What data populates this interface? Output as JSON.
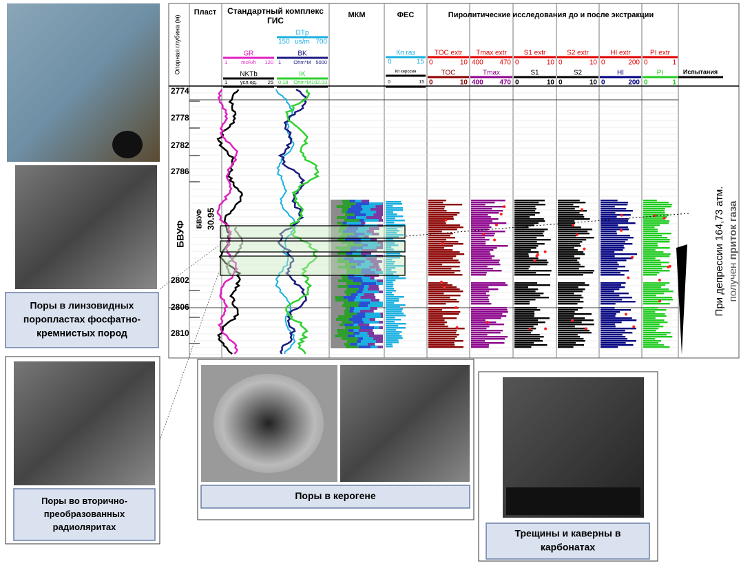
{
  "log": {
    "depth_axis_title": "Опорная глубина (м)",
    "headers": {
      "plast": "Пласт",
      "gis_line1": "Стандартный комплекс",
      "gis_line2": "ГИС",
      "mkm": "МКМ",
      "fes": "ФЕС",
      "pyro": "Пиролитические исследования до и после экстракции",
      "tests": "Испытания"
    },
    "gis_scales": [
      {
        "name": "DTp",
        "min": 150,
        "unit": "us/m",
        "max": 700
      },
      {
        "name": "GR",
        "min": 1,
        "unit": "mcR/h",
        "max": 120
      },
      {
        "name": "BK",
        "min": 1,
        "unit": "Ohm*M",
        "max": 5000
      },
      {
        "name": "NKTb",
        "min": 1,
        "unit": "усл.ед.",
        "max": 25
      },
      {
        "name": "IK",
        "min": 0.18,
        "unit": "Ohm*M",
        "max": 102.03
      }
    ],
    "fes_scales": [
      {
        "name": "Кп газ",
        "min": 0,
        "max": 15
      },
      {
        "name": "Кп керосин",
        "min": 0,
        "max": 15
      }
    ],
    "pyro_extr": [
      {
        "name": "TOC extr",
        "min": 0,
        "max": 10
      },
      {
        "name": "Tmax extr",
        "min": 400,
        "max": 470
      },
      {
        "name": "S1 extr",
        "min": 0,
        "max": 10
      },
      {
        "name": "S2 extr",
        "min": 0,
        "max": 10
      },
      {
        "name": "HI extr",
        "min": 0,
        "max": 200
      },
      {
        "name": "PI extr",
        "min": 0,
        "max": 1
      }
    ],
    "pyro": [
      {
        "name": "TOC",
        "min": 0,
        "max": 10
      },
      {
        "name": "Tmax",
        "min": 400,
        "max": 470
      },
      {
        "name": "S1",
        "min": 0,
        "max": 10
      },
      {
        "name": "S2",
        "min": 0,
        "max": 10
      },
      {
        "name": "HI",
        "min": 0,
        "max": 200
      },
      {
        "name": "PI",
        "min": 0,
        "max": 1
      }
    ],
    "depths": [
      2774,
      2778,
      2782,
      2786,
      2802,
      2806,
      2810
    ],
    "layer": "БВУФ",
    "layer_small": "БВУФ",
    "layer_value": "30.95",
    "annotation": {
      "line1": "При депрессии 164,73 атм.",
      "line2_prefix": "получен ",
      "line2_bold": "приток газа"
    }
  },
  "captions": [
    [
      "Поры в линзовидных",
      "поропластах  фосфатно-",
      "кремнистых пород"
    ],
    [
      "Поры во вторично-",
      "преобразованных",
      "радиоляритах"
    ],
    [
      "Поры в керогене"
    ],
    [
      "Трещины и каверны в",
      "карбонатах"
    ]
  ]
}
